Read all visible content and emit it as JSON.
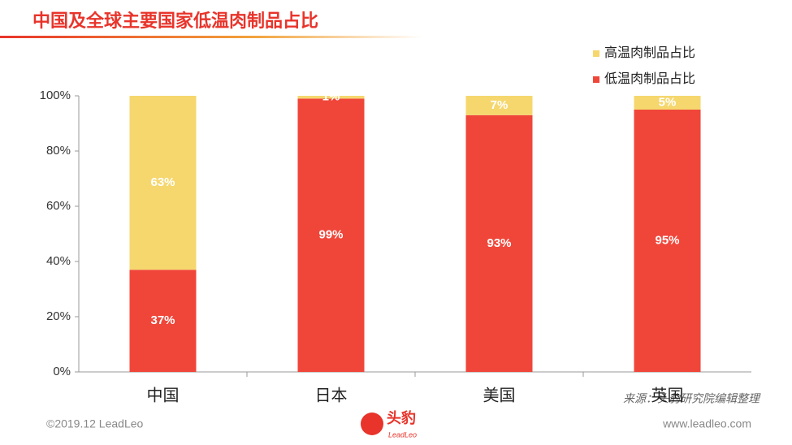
{
  "chart_data": {
    "type": "stacked_bar",
    "title": "中国及全球主要国家低温肉制品占比",
    "categories": [
      "中国",
      "日本",
      "美国",
      "英国"
    ],
    "series": [
      {
        "name": "低温肉制品占比",
        "color": "#f0463a",
        "values": [
          37,
          99,
          93,
          95
        ],
        "value_labels": [
          "37%",
          "99%",
          "93%",
          "95%"
        ]
      },
      {
        "name": "高温肉制品占比",
        "color": "#f5d76e",
        "values": [
          63,
          1,
          7,
          5
        ],
        "value_labels": [
          "63%",
          "1%",
          "7%",
          "5%"
        ]
      }
    ],
    "ylim": [
      0,
      100
    ],
    "yticks": [
      {
        "value": 0,
        "label": "0%"
      },
      {
        "value": 20,
        "label": "20%"
      },
      {
        "value": 40,
        "label": "40%"
      },
      {
        "value": 60,
        "label": "60%"
      },
      {
        "value": 80,
        "label": "80%"
      },
      {
        "value": 100,
        "label": "100%"
      }
    ],
    "grid": false,
    "legend": "top-right",
    "source": "来源：头豹研究院编辑整理",
    "footer_left": "©2019.12 LeadLeo",
    "footer_right": "www.leadleo.com",
    "logo": "头豹",
    "logo_sub": "LeadLeo"
  }
}
